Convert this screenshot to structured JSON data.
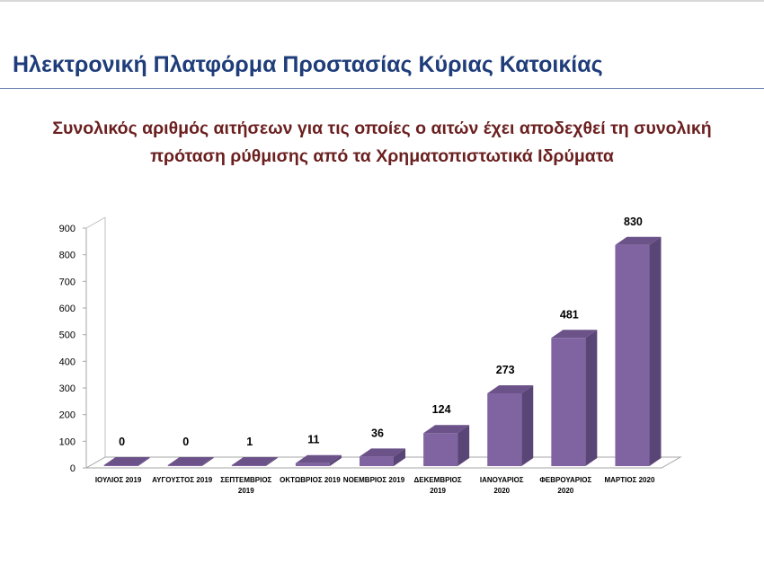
{
  "page": {
    "title": "Ηλεκτρονική Πλατφόρμα Προστασίας Κύριας Κατοικίας"
  },
  "colors": {
    "title": "#1f3d7a",
    "chart_title": "#6b1f1f",
    "bar_front": "#8064a2",
    "bar_side": "#5a4577",
    "bar_top": "#6b5289"
  },
  "chart_data": {
    "type": "bar",
    "title_lines": [
      "Συνολικός αριθμός αιτήσεων για τις οποίες ο αιτών έχει αποδεχθεί τη συνολική",
      "πρόταση ρύθμισης από τα Χρηματοπιστωτικά Ιδρύματα"
    ],
    "categories": [
      [
        "ΙΟΥΛΙΟΣ 2019"
      ],
      [
        "ΑΥΓΟΥΣΤΟΣ 2019"
      ],
      [
        "ΣΕΠΤΕΜΒΡΙΟΣ",
        "2019"
      ],
      [
        "ΟΚΤΩΒΡΙΟΣ 2019"
      ],
      [
        "ΝΟΕΜΒΡΙΟΣ 2019"
      ],
      [
        "ΔΕΚΕΜΒΡΙΟΣ",
        "2019"
      ],
      [
        "ΙΑΝΟΥΑΡΙΟΣ",
        "2020"
      ],
      [
        "ΦΕΒΡΟΥΑΡΙΟΣ",
        "2020"
      ],
      [
        "ΜΑΡΤΙΟΣ 2020"
      ]
    ],
    "values": [
      0,
      0,
      1,
      11,
      36,
      124,
      273,
      481,
      830
    ],
    "ylim": [
      0,
      900
    ],
    "yticks": [
      0,
      100,
      200,
      300,
      400,
      500,
      600,
      700,
      800,
      900
    ],
    "xlabel": "",
    "ylabel": "",
    "grid": false,
    "legend": "none",
    "style": "3d-column"
  }
}
